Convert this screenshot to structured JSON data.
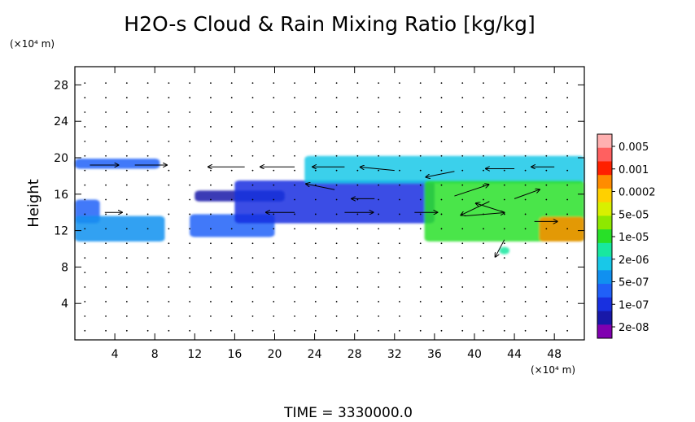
{
  "chart_data": {
    "type": "heatmap",
    "title": "H2O-s Cloud & Rain Mixing Ratio [kg/kg]",
    "ylabel": "Height",
    "y_unit_label": "(×10⁴ m)",
    "x_unit_label": "(×10⁴ m)",
    "footer": "TIME = 3330000.0",
    "xlim": [
      0,
      51
    ],
    "ylim": [
      0,
      30
    ],
    "x_ticks": [
      4,
      8,
      12,
      16,
      20,
      24,
      28,
      32,
      36,
      40,
      44,
      48
    ],
    "x_tick_labels": [
      "4",
      "8",
      "12",
      "16",
      "20",
      "24",
      "28",
      "32",
      "36",
      "40",
      "44",
      "48"
    ],
    "y_ticks": [
      4,
      8,
      12,
      16,
      20,
      24,
      28
    ],
    "y_tick_labels": [
      "4",
      "8",
      "12",
      "16",
      "20",
      "24",
      "28"
    ],
    "colorbar": {
      "labels": [
        "0.005",
        "0.001",
        "0.0002",
        "5e-05",
        "1e-05",
        "2e-06",
        "5e-07",
        "1e-07",
        "2e-08"
      ],
      "colors": [
        "#ffb0b0",
        "#ff6060",
        "#ff2000",
        "#ff8c00",
        "#ffd000",
        "#d8f000",
        "#8ee800",
        "#28e028",
        "#18e8a0",
        "#18c8e8",
        "#1090f0",
        "#2060f8",
        "#1830e0",
        "#1818a8",
        "#8000b0"
      ]
    },
    "cloud_regions": [
      {
        "x": [
          0,
          8.5
        ],
        "y": [
          18.8,
          19.9
        ],
        "level": 3
      },
      {
        "x": [
          0,
          2.5
        ],
        "y": [
          12.8,
          15.4
        ],
        "level": 3
      },
      {
        "x": [
          0,
          9
        ],
        "y": [
          10.8,
          13.6
        ],
        "level": 4
      },
      {
        "x": [
          11.5,
          20
        ],
        "y": [
          11.3,
          13.8
        ],
        "level": 3
      },
      {
        "x": [
          12,
          21
        ],
        "y": [
          15.2,
          16.4
        ],
        "level": 1
      },
      {
        "x": [
          16,
          36
        ],
        "y": [
          12.8,
          17.5
        ],
        "level": 2
      },
      {
        "x": [
          23,
          51
        ],
        "y": [
          17.2,
          20.2
        ],
        "level": 5
      },
      {
        "x": [
          35,
          51
        ],
        "y": [
          10.8,
          17.5
        ],
        "level": 7
      },
      {
        "x": [
          46.5,
          51
        ],
        "y": [
          10.8,
          13.5
        ],
        "level": 11
      },
      {
        "x": [
          42.5,
          43.5
        ],
        "y": [
          9.4,
          10.2
        ],
        "level": 6
      }
    ],
    "wind_vectors": [
      {
        "x": 1.5,
        "y": 19.2,
        "u": 2.5,
        "v": 0.0
      },
      {
        "x": 6.0,
        "y": 19.2,
        "u": 2.8,
        "v": 0.0
      },
      {
        "x": 17.0,
        "y": 19.0,
        "u": -3.2,
        "v": 0.0
      },
      {
        "x": 22.0,
        "y": 19.0,
        "u": -3.0,
        "v": 0.0
      },
      {
        "x": 27.0,
        "y": 19.0,
        "u": -2.8,
        "v": 0.0
      },
      {
        "x": 32.0,
        "y": 18.6,
        "u": -3.0,
        "v": 0.3
      },
      {
        "x": 38.0,
        "y": 18.5,
        "u": -2.5,
        "v": -0.5
      },
      {
        "x": 44.0,
        "y": 18.8,
        "u": -2.5,
        "v": 0.0
      },
      {
        "x": 48.0,
        "y": 19.0,
        "u": -2.0,
        "v": 0.0
      },
      {
        "x": 26.0,
        "y": 16.5,
        "u": -2.5,
        "v": 0.5
      },
      {
        "x": 30.0,
        "y": 15.5,
        "u": -2.0,
        "v": 0.0
      },
      {
        "x": 38.0,
        "y": 15.8,
        "u": 3.0,
        "v": 1.0
      },
      {
        "x": 41.5,
        "y": 15.2,
        "u": -2.5,
        "v": -1.2
      },
      {
        "x": 44.0,
        "y": 15.5,
        "u": 2.2,
        "v": 0.8
      },
      {
        "x": 39.0,
        "y": 13.6,
        "u": 3.5,
        "v": 0.3
      },
      {
        "x": 43.0,
        "y": 14.0,
        "u": -2.5,
        "v": 0.8
      },
      {
        "x": 46.0,
        "y": 13.0,
        "u": 2.0,
        "v": 0.0
      },
      {
        "x": 22.0,
        "y": 14.0,
        "u": -2.5,
        "v": 0.0
      },
      {
        "x": 27.0,
        "y": 14.0,
        "u": 2.5,
        "v": 0.0
      },
      {
        "x": 34.0,
        "y": 14.0,
        "u": 2.0,
        "v": 0.0
      },
      {
        "x": 3.0,
        "y": 14.0,
        "u": 1.5,
        "v": 0.0
      },
      {
        "x": 43.0,
        "y": 11.0,
        "u": -0.8,
        "v": -1.5
      }
    ]
  }
}
